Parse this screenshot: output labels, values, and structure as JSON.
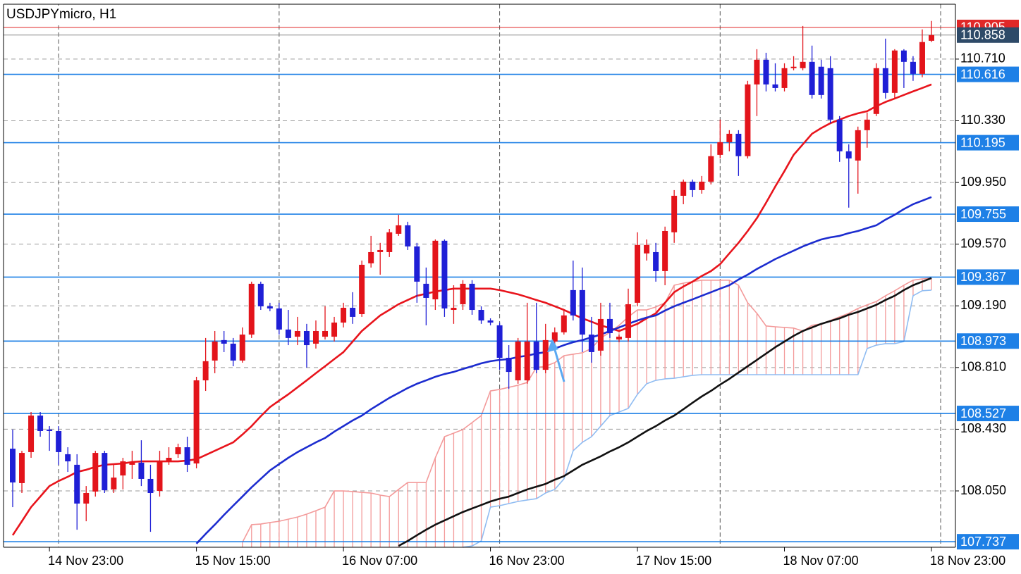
{
  "chart_data": {
    "type": "candlestick",
    "title": "USDJPYmicro, H1",
    "categories": [
      null,
      null,
      null,
      null,
      "14 Nov 23:00",
      null,
      null,
      null,
      null,
      null,
      null,
      null,
      null,
      null,
      null,
      null,
      null,
      null,
      null,
      null,
      "15 Nov 15:00",
      null,
      null,
      null,
      null,
      null,
      null,
      null,
      null,
      null,
      null,
      null,
      null,
      null,
      null,
      null,
      "16 Nov 07:00",
      null,
      null,
      null,
      null,
      null,
      null,
      null,
      null,
      null,
      null,
      null,
      null,
      null,
      null,
      null,
      "16 Nov 23:00",
      null,
      null,
      null,
      null,
      null,
      null,
      null,
      null,
      null,
      null,
      null,
      null,
      null,
      null,
      null,
      "17 Nov 15:00",
      null,
      null,
      null,
      null,
      null,
      null,
      null,
      null,
      null,
      null,
      null,
      null,
      null,
      null,
      null,
      "18 Nov 07:00",
      null,
      null,
      null,
      null,
      null,
      null,
      null,
      null,
      null,
      null,
      null,
      null,
      null,
      null,
      null,
      "18 Nov 23:00"
    ],
    "open": [
      108.31,
      108.098,
      108.289,
      108.514,
      108.428,
      108.419,
      108.276,
      108.211,
      107.972,
      108.046,
      108.284,
      108.059,
      108.145,
      108.211,
      108.224,
      108.124,
      108.05,
      108.232,
      108.276,
      108.319,
      108.219,
      108.731,
      108.853,
      108.979,
      108.957,
      108.853,
      109.013,
      109.326,
      109.187,
      109.174,
      109.044,
      109.0,
      109.035,
      108.957,
      109.0,
      109.0,
      109.087,
      109.178,
      109.139,
      109.452,
      109.521,
      109.521,
      109.634,
      109.686,
      109.556,
      109.326,
      109.23,
      109.591,
      109.165,
      109.2,
      109.326,
      109.165,
      109.1,
      109.07,
      108.87,
      108.731,
      108.731,
      108.97,
      108.796,
      108.97,
      109.027,
      109.287,
      109.287,
      109.013,
      108.914,
      109.109,
      108.983,
      108.992,
      109.209,
      109.513,
      109.521,
      109.404,
      109.643,
      109.868,
      109.955,
      109.903,
      109.955,
      110.12,
      110.198,
      110.25,
      110.112,
      110.554,
      110.706,
      110.554,
      110.532,
      110.654,
      110.654,
      110.693,
      110.663,
      110.654,
      110.337,
      110.142,
      110.085,
      110.272,
      110.372,
      110.654,
      110.502,
      110.763,
      110.693,
      110.619,
      110.823
    ],
    "high": [
      108.428,
      108.297,
      108.536,
      108.536,
      108.449,
      108.449,
      108.319,
      108.276,
      108.08,
      108.297,
      108.297,
      108.211,
      108.254,
      108.297,
      108.362,
      108.211,
      108.297,
      108.319,
      108.341,
      108.384,
      108.753,
      108.992,
      109.035,
      109.035,
      108.992,
      109.057,
      109.339,
      109.339,
      109.209,
      109.209,
      109.165,
      109.122,
      109.079,
      109.1,
      109.187,
      109.122,
      109.209,
      109.274,
      109.469,
      109.621,
      109.578,
      109.664,
      109.751,
      109.708,
      109.578,
      109.426,
      109.599,
      109.599,
      109.317,
      109.348,
      109.348,
      109.187,
      109.113,
      109.087,
      108.948,
      108.992,
      109.209,
      109.209,
      109.079,
      109.057,
      109.165,
      109.469,
      109.426,
      109.122,
      109.209,
      109.209,
      109.013,
      109.296,
      109.643,
      109.599,
      109.578,
      109.678,
      109.903,
      109.968,
      109.968,
      109.99,
      110.185,
      110.337,
      110.272,
      110.272,
      110.576,
      110.771,
      110.749,
      110.684,
      110.684,
      110.728,
      110.914,
      110.793,
      110.706,
      110.728,
      110.359,
      110.185,
      110.294,
      110.381,
      110.684,
      110.836,
      110.771,
      110.771,
      110.728,
      110.893,
      110.945
    ],
    "low": [
      107.95,
      108.037,
      108.254,
      108.384,
      108.297,
      108.211,
      108.167,
      107.811,
      107.863,
      108.015,
      108.037,
      108.037,
      108.059,
      108.124,
      108.08,
      107.798,
      108.015,
      108.211,
      108.254,
      108.167,
      108.189,
      108.666,
      108.775,
      108.905,
      108.818,
      108.84,
      108.992,
      109.165,
      109.157,
      109.013,
      108.948,
      108.948,
      108.81,
      108.927,
      108.983,
      108.97,
      109.057,
      109.079,
      109.122,
      109.426,
      109.382,
      109.491,
      109.621,
      109.534,
      109.209,
      109.07,
      109.165,
      109.122,
      109.079,
      109.165,
      109.135,
      109.079,
      109.07,
      108.796,
      108.679,
      108.71,
      108.71,
      108.775,
      108.775,
      108.948,
      109.013,
      109.1,
      108.905,
      108.84,
      108.883,
      108.992,
      108.966,
      108.97,
      109.187,
      109.469,
      109.339,
      109.317,
      109.578,
      109.816,
      109.86,
      109.881,
      109.938,
      110.098,
      110.142,
      109.99,
      110.098,
      110.359,
      110.511,
      110.511,
      110.511,
      110.641,
      110.641,
      110.467,
      110.467,
      110.315,
      110.077,
      109.795,
      109.881,
      110.164,
      110.359,
      110.467,
      110.467,
      110.532,
      110.576,
      110.598,
      110.815
    ],
    "close": [
      108.102,
      108.284,
      108.514,
      108.419,
      108.419,
      108.289,
      108.232,
      107.972,
      108.037,
      108.284,
      108.054,
      108.132,
      108.232,
      108.224,
      108.124,
      108.037,
      108.232,
      108.254,
      108.319,
      108.211,
      108.731,
      108.849,
      108.97,
      108.957,
      108.853,
      109.013,
      109.326,
      109.187,
      109.174,
      109.044,
      108.992,
      109.035,
      108.948,
      109.035,
      109.035,
      109.087,
      109.178,
      109.122,
      109.443,
      109.521,
      109.534,
      109.643,
      109.686,
      109.556,
      109.339,
      109.239,
      109.591,
      109.174,
      109.178,
      109.326,
      109.165,
      109.1,
      109.087,
      108.87,
      108.783,
      108.97,
      108.97,
      108.796,
      108.979,
      109.027,
      109.131,
      109.131,
      109.013,
      108.905,
      109.109,
      109.022,
      109.0,
      109.2,
      109.565,
      109.565,
      109.404,
      109.651,
      109.868,
      109.955,
      109.903,
      109.955,
      110.112,
      110.198,
      110.25,
      110.112,
      110.554,
      110.706,
      110.554,
      110.532,
      110.654,
      110.663,
      110.693,
      110.489,
      110.489,
      110.337,
      110.142,
      110.098,
      110.272,
      110.337,
      110.654,
      110.502,
      110.763,
      110.693,
      110.619,
      110.815,
      110.858
    ],
    "up_color": "#e3141b",
    "down_color": "#1f1fd6",
    "ylim": [
      107.703,
      111.048
    ],
    "yticks": [
      {
        "value": 110.71,
        "label": "110.710"
      },
      {
        "value": 110.33,
        "label": "110.330"
      },
      {
        "value": 109.95,
        "label": "109.950"
      },
      {
        "value": 109.57,
        "label": "109.570"
      },
      {
        "value": 109.19,
        "label": "109.190"
      },
      {
        "value": 108.81,
        "label": "108.810"
      },
      {
        "value": 108.43,
        "label": "108.430"
      },
      {
        "value": 108.05,
        "label": "108.050"
      }
    ],
    "grid": true,
    "lines": [
      {
        "color": "#e8141c",
        "values": [
          107.777,
          107.863,
          107.95,
          108.015,
          108.08,
          108.111,
          108.137,
          108.167,
          108.18,
          108.198,
          108.211,
          108.215,
          108.219,
          108.228,
          108.232,
          108.232,
          108.232,
          108.232,
          108.232,
          108.237,
          108.245,
          108.271,
          108.297,
          108.323,
          108.349,
          108.397,
          108.449,
          108.51,
          108.566,
          108.606,
          108.645,
          108.688,
          108.731,
          108.775,
          108.818,
          108.862,
          108.905,
          108.97,
          109.035,
          109.083,
          109.131,
          109.165,
          109.2,
          109.226,
          109.252,
          109.265,
          109.278,
          109.287,
          109.296,
          109.296,
          109.296,
          109.296,
          109.296,
          109.287,
          109.274,
          109.261,
          109.244,
          109.226,
          109.209,
          109.187,
          109.165,
          109.139,
          109.113,
          109.092,
          109.07,
          109.053,
          109.035,
          109.057,
          109.079,
          109.113,
          109.144,
          109.209,
          109.274,
          109.309,
          109.339,
          109.374,
          109.404,
          109.447,
          109.513,
          109.578,
          109.651,
          109.73,
          109.825,
          109.925,
          110.02,
          110.12,
          110.185,
          110.25,
          110.285,
          110.315,
          110.337,
          110.359,
          110.376,
          110.389,
          110.42,
          110.446,
          110.467,
          110.489,
          110.511,
          110.532,
          110.554
        ]
      },
      {
        "color": "#1c2ccf",
        "values": [
          null,
          null,
          null,
          null,
          null,
          null,
          null,
          null,
          null,
          null,
          null,
          null,
          null,
          null,
          null,
          null,
          null,
          null,
          null,
          null,
          107.725,
          107.785,
          107.842,
          107.902,
          107.959,
          108.015,
          108.072,
          108.124,
          108.176,
          108.215,
          108.254,
          108.289,
          108.319,
          108.349,
          108.376,
          108.415,
          108.449,
          108.484,
          108.514,
          108.553,
          108.588,
          108.623,
          108.653,
          108.684,
          108.71,
          108.731,
          108.753,
          108.77,
          108.783,
          108.801,
          108.818,
          108.836,
          108.849,
          108.857,
          108.862,
          108.875,
          108.883,
          108.896,
          108.905,
          108.927,
          108.948,
          108.966,
          108.979,
          108.996,
          109.013,
          109.035,
          109.057,
          109.079,
          109.1,
          109.118,
          109.131,
          109.161,
          109.187,
          109.209,
          109.23,
          109.252,
          109.274,
          109.296,
          109.317,
          109.352,
          109.382,
          109.417,
          109.447,
          109.478,
          109.504,
          109.53,
          109.556,
          109.578,
          109.599,
          109.612,
          109.621,
          109.638,
          109.651,
          109.669,
          109.686,
          109.721,
          109.751,
          109.786,
          109.816,
          109.838,
          109.86
        ]
      },
      {
        "color": "#111111",
        "values": [
          null,
          null,
          null,
          null,
          null,
          null,
          null,
          null,
          null,
          null,
          null,
          null,
          null,
          null,
          null,
          null,
          null,
          null,
          null,
          null,
          null,
          null,
          null,
          null,
          null,
          null,
          null,
          null,
          null,
          null,
          null,
          null,
          null,
          null,
          null,
          null,
          null,
          null,
          null,
          null,
          null,
          null,
          107.711,
          107.742,
          107.777,
          107.811,
          107.842,
          107.868,
          107.894,
          107.92,
          107.942,
          107.963,
          107.985,
          108.002,
          108.015,
          108.037,
          108.059,
          108.076,
          108.093,
          108.119,
          108.141,
          108.176,
          108.211,
          108.237,
          108.263,
          108.293,
          108.319,
          108.349,
          108.384,
          108.419,
          108.449,
          108.484,
          108.514,
          108.553,
          108.593,
          108.632,
          108.666,
          108.705,
          108.74,
          108.779,
          108.818,
          108.857,
          108.896,
          108.935,
          108.97,
          109.005,
          109.035,
          109.057,
          109.079,
          109.096,
          109.113,
          109.135,
          109.152,
          109.174,
          109.196,
          109.226,
          109.252,
          109.287,
          109.317,
          109.339,
          109.361
        ]
      }
    ],
    "cloud": {
      "span_a": {
        "color": "#f39a9a",
        "values": [
          null,
          null,
          null,
          null,
          null,
          null,
          null,
          null,
          null,
          null,
          null,
          null,
          null,
          null,
          null,
          null,
          null,
          null,
          null,
          null,
          null,
          null,
          null,
          null,
          null,
          107.733,
          107.842,
          107.846,
          107.855,
          107.863,
          107.876,
          107.889,
          107.907,
          107.928,
          107.95,
          108.05,
          108.05,
          108.046,
          108.041,
          108.037,
          108.024,
          108.015,
          108.059,
          108.102,
          108.102,
          108.102,
          108.254,
          108.384,
          108.406,
          108.428,
          108.471,
          108.514,
          108.666,
          108.675,
          108.688,
          108.701,
          108.718,
          108.81,
          108.818,
          108.84,
          108.883,
          108.892,
          108.901,
          108.927,
          108.992,
          109.027,
          109.07,
          109.122,
          109.165,
          109.165,
          109.183,
          109.209,
          109.317,
          109.33,
          109.339,
          109.348,
          109.348,
          109.348,
          109.348,
          109.317,
          109.209,
          109.144,
          109.066,
          109.061,
          109.057,
          109.053,
          109.035,
          109.07,
          109.079,
          109.1,
          109.122,
          109.144,
          109.174,
          109.196,
          109.217,
          109.252,
          109.283,
          109.317,
          109.348,
          109.356,
          109.361
        ]
      },
      "span_b": {
        "color": "#8fbcf2",
        "values": [
          null,
          null,
          null,
          null,
          null,
          null,
          null,
          null,
          null,
          null,
          null,
          null,
          null,
          null,
          null,
          null,
          null,
          null,
          null,
          null,
          null,
          null,
          null,
          null,
          null,
          null,
          null,
          null,
          null,
          null,
          null,
          null,
          null,
          null,
          null,
          null,
          null,
          null,
          null,
          null,
          null,
          null,
          null,
          null,
          null,
          null,
          null,
          null,
          null,
          107.703,
          107.711,
          107.742,
          107.95,
          107.959,
          107.972,
          107.985,
          107.994,
          108.002,
          108.037,
          108.059,
          108.124,
          108.297,
          108.349,
          108.384,
          108.449,
          108.514,
          108.536,
          108.558,
          108.645,
          108.71,
          108.731,
          108.74,
          108.744,
          108.753,
          108.762,
          108.766,
          108.766,
          108.766,
          108.766,
          108.766,
          108.766,
          108.766,
          108.766,
          108.766,
          108.766,
          108.766,
          108.766,
          108.766,
          108.766,
          108.766,
          108.766,
          108.766,
          108.766,
          108.927,
          108.948,
          108.957,
          108.957,
          108.97,
          109.252,
          109.283,
          109.287
        ]
      }
    },
    "levels": {
      "color": "#1e80e6",
      "values": [
        110.616,
        110.195,
        109.755,
        109.367,
        108.973,
        108.527,
        107.737
      ]
    },
    "ask": {
      "color": "#e02828",
      "value": 110.905
    },
    "bid": {
      "color": "#2e4a68",
      "value": 110.858
    }
  }
}
